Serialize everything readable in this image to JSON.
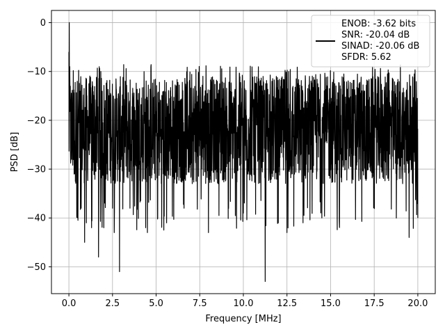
{
  "chart_data": {
    "type": "line",
    "title": "",
    "xlabel": "Frequency [MHz]",
    "ylabel": "PSD [dB]",
    "xlim": [
      -1.0,
      21.0
    ],
    "ylim": [
      -55.5,
      2.5
    ],
    "x_ticks": [
      0.0,
      2.5,
      5.0,
      7.5,
      10.0,
      12.5,
      15.0,
      17.5,
      20.0
    ],
    "x_tick_labels": [
      "0.0",
      "2.5",
      "5.0",
      "7.5",
      "10.0",
      "12.5",
      "15.0",
      "17.5",
      "20.0"
    ],
    "y_ticks": [
      0,
      -10,
      -20,
      -30,
      -40,
      -50
    ],
    "y_tick_labels": [
      "0",
      "−10",
      "−20",
      "−30",
      "−40",
      "−50"
    ],
    "grid": true,
    "legend_position": "top-right",
    "legend_lines": [
      "ENOB: -3.62 bits",
      "SNR: -20.04 dB",
      "SINAD: -20.06 dB",
      "SFDR: 5.62"
    ],
    "line_color": "#000000",
    "series": [
      {
        "x_range": [
          0.0,
          20.0
        ],
        "noise_band_db": [
          -33,
          -11
        ],
        "points": [
          [
            0.0,
            -6
          ],
          [
            0.02,
            0.0
          ],
          [
            0.05,
            -9
          ],
          [
            0.08,
            -13
          ],
          [
            0.12,
            -16
          ],
          [
            0.16,
            -28
          ],
          [
            0.2,
            -18
          ],
          [
            0.3,
            -31
          ],
          [
            0.5,
            -40
          ],
          [
            0.7,
            -38
          ],
          [
            0.9,
            -45
          ],
          [
            1.0,
            -41
          ],
          [
            1.3,
            -42
          ],
          [
            1.7,
            -48
          ],
          [
            2.0,
            -42
          ],
          [
            2.5,
            -38
          ],
          [
            2.6,
            -43
          ],
          [
            2.9,
            -51
          ],
          [
            3.5,
            -38
          ],
          [
            4.4,
            -42
          ],
          [
            4.5,
            -43
          ],
          [
            5.6,
            -41
          ],
          [
            6.6,
            -38
          ],
          [
            8.0,
            -43
          ],
          [
            10.0,
            -39
          ],
          [
            11.25,
            -53
          ],
          [
            12.0,
            -41
          ],
          [
            12.5,
            -43
          ],
          [
            14.5,
            -40
          ],
          [
            17.5,
            -38
          ],
          [
            19.5,
            -44
          ],
          [
            20.0,
            -40
          ]
        ]
      }
    ]
  }
}
